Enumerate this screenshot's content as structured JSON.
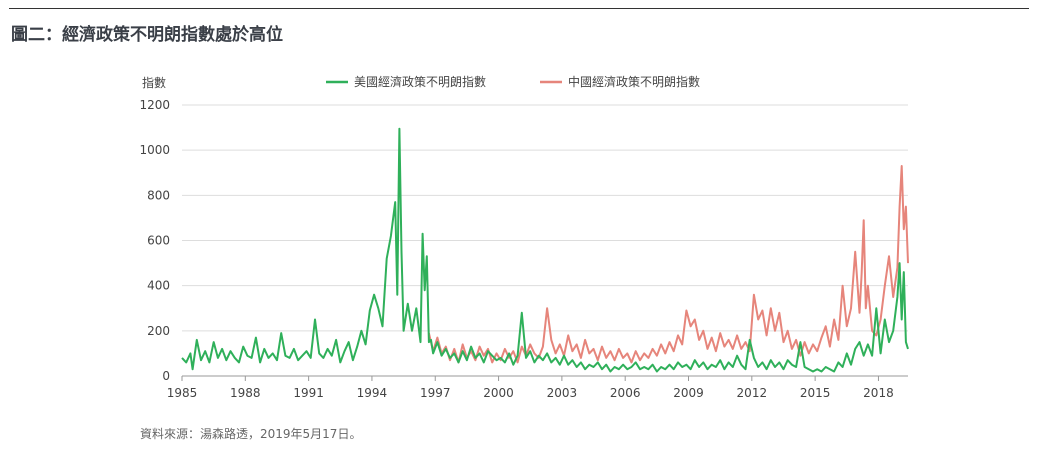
{
  "title": "圖二：經濟政策不明朗指數處於高位",
  "source": "資料來源：湯森路透，2019年5月17日。",
  "colors": {
    "us": "#2fb05a",
    "china": "#e6857b",
    "grid": "#dddddd",
    "axis": "#999999"
  },
  "chart_data": {
    "type": "line",
    "title": "",
    "xlabel": "",
    "ylabel": "指數",
    "ylim": [
      0,
      1200
    ],
    "xlim": [
      1985,
      2019.4
    ],
    "yticks": [
      0,
      200,
      400,
      600,
      800,
      1000,
      1200
    ],
    "xticks": [
      1985,
      1988,
      1991,
      1994,
      1997,
      2000,
      2003,
      2006,
      2009,
      2012,
      2015,
      2018
    ],
    "grid": "horizontal",
    "legend": "top-center",
    "series": [
      {
        "name": "美國經濟政策不明朗指數",
        "color": "#2fb05a",
        "points": [
          [
            1985.0,
            80
          ],
          [
            1985.2,
            60
          ],
          [
            1985.4,
            100
          ],
          [
            1985.5,
            30
          ],
          [
            1985.7,
            160
          ],
          [
            1985.9,
            70
          ],
          [
            1986.1,
            110
          ],
          [
            1986.3,
            60
          ],
          [
            1986.5,
            150
          ],
          [
            1986.7,
            80
          ],
          [
            1986.9,
            120
          ],
          [
            1987.1,
            70
          ],
          [
            1987.3,
            110
          ],
          [
            1987.5,
            80
          ],
          [
            1987.7,
            60
          ],
          [
            1987.9,
            130
          ],
          [
            1988.1,
            90
          ],
          [
            1988.3,
            80
          ],
          [
            1988.5,
            170
          ],
          [
            1988.7,
            60
          ],
          [
            1988.9,
            120
          ],
          [
            1989.1,
            80
          ],
          [
            1989.3,
            100
          ],
          [
            1989.5,
            70
          ],
          [
            1989.7,
            190
          ],
          [
            1989.9,
            90
          ],
          [
            1990.1,
            80
          ],
          [
            1990.3,
            120
          ],
          [
            1990.5,
            70
          ],
          [
            1990.7,
            90
          ],
          [
            1990.9,
            110
          ],
          [
            1991.1,
            80
          ],
          [
            1991.3,
            250
          ],
          [
            1991.5,
            100
          ],
          [
            1991.7,
            80
          ],
          [
            1991.9,
            120
          ],
          [
            1992.1,
            90
          ],
          [
            1992.3,
            160
          ],
          [
            1992.5,
            60
          ],
          [
            1992.7,
            110
          ],
          [
            1992.9,
            150
          ],
          [
            1993.1,
            70
          ],
          [
            1993.3,
            130
          ],
          [
            1993.5,
            200
          ],
          [
            1993.7,
            140
          ],
          [
            1993.9,
            290
          ],
          [
            1994.1,
            360
          ],
          [
            1994.3,
            300
          ],
          [
            1994.5,
            220
          ],
          [
            1994.7,
            520
          ],
          [
            1994.9,
            620
          ],
          [
            1995.1,
            770
          ],
          [
            1995.2,
            360
          ],
          [
            1995.3,
            1095
          ],
          [
            1995.4,
            550
          ],
          [
            1995.5,
            200
          ],
          [
            1995.7,
            320
          ],
          [
            1995.9,
            200
          ],
          [
            1996.1,
            300
          ],
          [
            1996.3,
            150
          ],
          [
            1996.4,
            630
          ],
          [
            1996.5,
            380
          ],
          [
            1996.6,
            530
          ],
          [
            1996.7,
            150
          ],
          [
            1996.8,
            160
          ],
          [
            1996.9,
            100
          ],
          [
            1997.1,
            150
          ],
          [
            1997.3,
            90
          ],
          [
            1997.5,
            120
          ],
          [
            1997.7,
            80
          ],
          [
            1997.9,
            100
          ],
          [
            1998.1,
            60
          ],
          [
            1998.3,
            110
          ],
          [
            1998.5,
            70
          ],
          [
            1998.7,
            130
          ],
          [
            1998.9,
            80
          ],
          [
            1999.1,
            100
          ],
          [
            1999.3,
            60
          ],
          [
            1999.5,
            110
          ],
          [
            1999.7,
            90
          ],
          [
            1999.9,
            70
          ],
          [
            2000.1,
            80
          ],
          [
            2000.3,
            60
          ],
          [
            2000.5,
            100
          ],
          [
            2000.7,
            50
          ],
          [
            2000.9,
            90
          ],
          [
            2001.1,
            280
          ],
          [
            2001.3,
            80
          ],
          [
            2001.5,
            110
          ],
          [
            2001.7,
            60
          ],
          [
            2001.9,
            90
          ],
          [
            2002.1,
            70
          ],
          [
            2002.3,
            100
          ],
          [
            2002.5,
            60
          ],
          [
            2002.7,
            80
          ],
          [
            2002.9,
            50
          ],
          [
            2003.1,
            90
          ],
          [
            2003.3,
            50
          ],
          [
            2003.5,
            70
          ],
          [
            2003.7,
            40
          ],
          [
            2003.9,
            60
          ],
          [
            2004.1,
            30
          ],
          [
            2004.3,
            50
          ],
          [
            2004.5,
            40
          ],
          [
            2004.7,
            60
          ],
          [
            2004.9,
            30
          ],
          [
            2005.1,
            50
          ],
          [
            2005.3,
            20
          ],
          [
            2005.5,
            40
          ],
          [
            2005.7,
            30
          ],
          [
            2005.9,
            50
          ],
          [
            2006.1,
            30
          ],
          [
            2006.3,
            40
          ],
          [
            2006.5,
            60
          ],
          [
            2006.7,
            30
          ],
          [
            2006.9,
            40
          ],
          [
            2007.1,
            30
          ],
          [
            2007.3,
            50
          ],
          [
            2007.5,
            20
          ],
          [
            2007.7,
            40
          ],
          [
            2007.9,
            30
          ],
          [
            2008.1,
            50
          ],
          [
            2008.3,
            30
          ],
          [
            2008.5,
            60
          ],
          [
            2008.7,
            40
          ],
          [
            2008.9,
            50
          ],
          [
            2009.1,
            30
          ],
          [
            2009.3,
            70
          ],
          [
            2009.5,
            40
          ],
          [
            2009.7,
            60
          ],
          [
            2009.9,
            30
          ],
          [
            2010.1,
            50
          ],
          [
            2010.3,
            40
          ],
          [
            2010.5,
            70
          ],
          [
            2010.7,
            30
          ],
          [
            2010.9,
            60
          ],
          [
            2011.1,
            40
          ],
          [
            2011.3,
            90
          ],
          [
            2011.5,
            50
          ],
          [
            2011.7,
            30
          ],
          [
            2011.9,
            160
          ],
          [
            2012.1,
            80
          ],
          [
            2012.3,
            40
          ],
          [
            2012.5,
            60
          ],
          [
            2012.7,
            30
          ],
          [
            2012.9,
            70
          ],
          [
            2013.1,
            40
          ],
          [
            2013.3,
            60
          ],
          [
            2013.5,
            30
          ],
          [
            2013.7,
            70
          ],
          [
            2013.9,
            50
          ],
          [
            2014.1,
            40
          ],
          [
            2014.3,
            150
          ],
          [
            2014.5,
            40
          ],
          [
            2014.7,
            30
          ],
          [
            2014.9,
            20
          ],
          [
            2015.1,
            30
          ],
          [
            2015.3,
            20
          ],
          [
            2015.5,
            40
          ],
          [
            2015.7,
            30
          ],
          [
            2015.9,
            20
          ],
          [
            2016.1,
            60
          ],
          [
            2016.3,
            40
          ],
          [
            2016.5,
            100
          ],
          [
            2016.7,
            50
          ],
          [
            2016.9,
            120
          ],
          [
            2017.1,
            150
          ],
          [
            2017.3,
            90
          ],
          [
            2017.5,
            140
          ],
          [
            2017.7,
            90
          ],
          [
            2017.9,
            300
          ],
          [
            2018.1,
            100
          ],
          [
            2018.3,
            250
          ],
          [
            2018.5,
            150
          ],
          [
            2018.7,
            200
          ],
          [
            2018.9,
            350
          ],
          [
            2019.0,
            500
          ],
          [
            2019.1,
            250
          ],
          [
            2019.2,
            460
          ],
          [
            2019.3,
            150
          ],
          [
            2019.4,
            120
          ]
        ]
      },
      {
        "name": "中國經濟政策不明朗指數",
        "color": "#e6857b",
        "points": [
          [
            1996.7,
            190
          ],
          [
            1996.9,
            110
          ],
          [
            1997.1,
            170
          ],
          [
            1997.3,
            100
          ],
          [
            1997.5,
            130
          ],
          [
            1997.7,
            70
          ],
          [
            1997.9,
            120
          ],
          [
            1998.1,
            60
          ],
          [
            1998.3,
            140
          ],
          [
            1998.5,
            80
          ],
          [
            1998.7,
            110
          ],
          [
            1998.9,
            70
          ],
          [
            1999.1,
            130
          ],
          [
            1999.3,
            90
          ],
          [
            1999.5,
            120
          ],
          [
            1999.7,
            60
          ],
          [
            1999.9,
            100
          ],
          [
            2000.1,
            70
          ],
          [
            2000.3,
            120
          ],
          [
            2000.5,
            80
          ],
          [
            2000.7,
            110
          ],
          [
            2000.9,
            60
          ],
          [
            2001.1,
            130
          ],
          [
            2001.3,
            90
          ],
          [
            2001.5,
            140
          ],
          [
            2001.7,
            100
          ],
          [
            2001.9,
            80
          ],
          [
            2002.1,
            130
          ],
          [
            2002.3,
            300
          ],
          [
            2002.5,
            160
          ],
          [
            2002.7,
            100
          ],
          [
            2002.9,
            140
          ],
          [
            2003.1,
            90
          ],
          [
            2003.3,
            180
          ],
          [
            2003.5,
            110
          ],
          [
            2003.7,
            140
          ],
          [
            2003.9,
            80
          ],
          [
            2004.1,
            160
          ],
          [
            2004.3,
            100
          ],
          [
            2004.5,
            120
          ],
          [
            2004.7,
            70
          ],
          [
            2004.9,
            130
          ],
          [
            2005.1,
            80
          ],
          [
            2005.3,
            110
          ],
          [
            2005.5,
            70
          ],
          [
            2005.7,
            120
          ],
          [
            2005.9,
            80
          ],
          [
            2006.1,
            100
          ],
          [
            2006.3,
            60
          ],
          [
            2006.5,
            110
          ],
          [
            2006.7,
            70
          ],
          [
            2006.9,
            100
          ],
          [
            2007.1,
            80
          ],
          [
            2007.3,
            120
          ],
          [
            2007.5,
            90
          ],
          [
            2007.7,
            140
          ],
          [
            2007.9,
            100
          ],
          [
            2008.1,
            150
          ],
          [
            2008.3,
            110
          ],
          [
            2008.5,
            180
          ],
          [
            2008.7,
            140
          ],
          [
            2008.9,
            290
          ],
          [
            2009.1,
            220
          ],
          [
            2009.3,
            250
          ],
          [
            2009.5,
            160
          ],
          [
            2009.7,
            200
          ],
          [
            2009.9,
            120
          ],
          [
            2010.1,
            170
          ],
          [
            2010.3,
            110
          ],
          [
            2010.5,
            190
          ],
          [
            2010.7,
            130
          ],
          [
            2010.9,
            160
          ],
          [
            2011.1,
            120
          ],
          [
            2011.3,
            180
          ],
          [
            2011.5,
            120
          ],
          [
            2011.7,
            150
          ],
          [
            2011.9,
            110
          ],
          [
            2012.1,
            360
          ],
          [
            2012.3,
            250
          ],
          [
            2012.5,
            290
          ],
          [
            2012.7,
            180
          ],
          [
            2012.9,
            300
          ],
          [
            2013.1,
            200
          ],
          [
            2013.3,
            280
          ],
          [
            2013.5,
            150
          ],
          [
            2013.7,
            200
          ],
          [
            2013.9,
            120
          ],
          [
            2014.1,
            160
          ],
          [
            2014.3,
            90
          ],
          [
            2014.5,
            150
          ],
          [
            2014.7,
            100
          ],
          [
            2014.9,
            140
          ],
          [
            2015.1,
            110
          ],
          [
            2015.3,
            170
          ],
          [
            2015.5,
            220
          ],
          [
            2015.7,
            130
          ],
          [
            2015.9,
            250
          ],
          [
            2016.1,
            160
          ],
          [
            2016.3,
            400
          ],
          [
            2016.5,
            220
          ],
          [
            2016.7,
            300
          ],
          [
            2016.9,
            550
          ],
          [
            2017.1,
            280
          ],
          [
            2017.2,
            450
          ],
          [
            2017.3,
            690
          ],
          [
            2017.4,
            300
          ],
          [
            2017.5,
            400
          ],
          [
            2017.7,
            200
          ],
          [
            2017.9,
            180
          ],
          [
            2018.1,
            250
          ],
          [
            2018.3,
            400
          ],
          [
            2018.5,
            530
          ],
          [
            2018.7,
            350
          ],
          [
            2018.9,
            480
          ],
          [
            2019.0,
            750
          ],
          [
            2019.1,
            930
          ],
          [
            2019.2,
            650
          ],
          [
            2019.3,
            750
          ],
          [
            2019.4,
            500
          ]
        ]
      }
    ]
  }
}
